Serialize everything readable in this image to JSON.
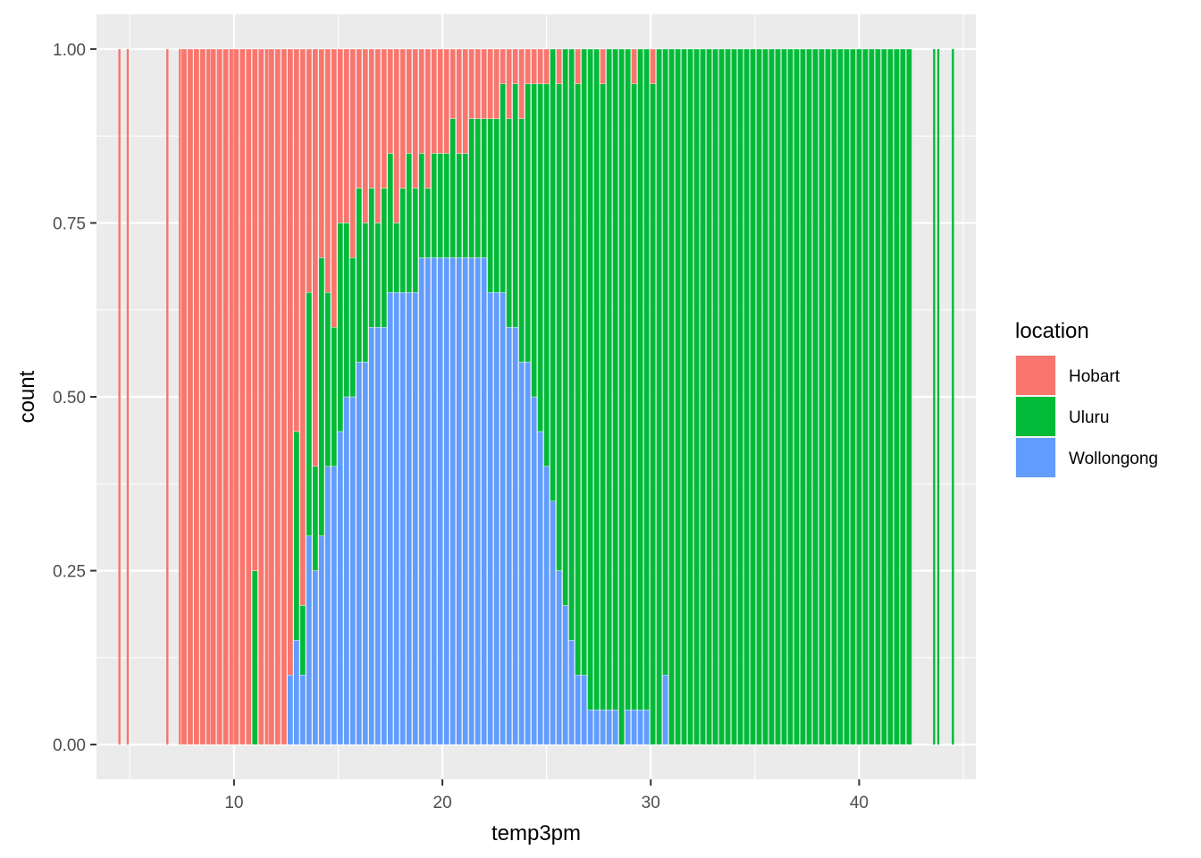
{
  "chart_data": {
    "type": "bar",
    "position": "fill",
    "xlabel": "temp3pm",
    "ylabel": "count",
    "xlim": [
      3.4,
      45.6
    ],
    "ylim": [
      -0.05,
      1.05
    ],
    "x_ticks": [
      10,
      20,
      30,
      40
    ],
    "x_tick_labels": [
      "10",
      "20",
      "30",
      "40"
    ],
    "y_ticks": [
      0,
      0.25,
      0.5,
      0.75,
      1.0
    ],
    "y_tick_labels": [
      "0.00",
      "0.25",
      "0.50",
      "0.75",
      "1.00"
    ],
    "grid": true,
    "legend": {
      "title": "location",
      "placement": "right"
    },
    "series": [
      {
        "name": "Hobart",
        "color": "#F8766D"
      },
      {
        "name": "Uluru",
        "color": "#00BA38"
      },
      {
        "name": "Wollongong",
        "color": "#619CFF"
      }
    ],
    "x": [
      4.5,
      4.9,
      6.8,
      7.4,
      7.6,
      7.9,
      8.2,
      8.5,
      8.8,
      9.0,
      9.3,
      9.6,
      9.9,
      10.1,
      10.4,
      10.7,
      11.0,
      11.3,
      11.6,
      11.8,
      12.1,
      12.4,
      12.7,
      13.0,
      13.3,
      13.6,
      13.9,
      14.2,
      14.5,
      14.8,
      15.1,
      15.4,
      15.7,
      16.0,
      16.3,
      16.6,
      16.9,
      17.2,
      17.5,
      17.8,
      18.1,
      18.4,
      18.7,
      19.0,
      19.3,
      19.6,
      19.9,
      20.2,
      20.5,
      20.8,
      21.1,
      21.4,
      21.7,
      22.0,
      22.3,
      22.6,
      22.9,
      23.2,
      23.5,
      23.8,
      24.1,
      24.4,
      24.7,
      25.0,
      25.3,
      25.6,
      25.9,
      26.2,
      26.5,
      26.8,
      27.1,
      27.4,
      27.7,
      28.0,
      28.3,
      28.6,
      28.9,
      29.2,
      29.5,
      29.8,
      30.1,
      30.4,
      30.7,
      31.0,
      31.3,
      31.6,
      31.9,
      32.2,
      32.5,
      32.8,
      33.1,
      33.4,
      33.7,
      34.0,
      34.3,
      34.6,
      34.9,
      35.2,
      35.5,
      35.8,
      36.1,
      36.4,
      36.7,
      37.0,
      37.3,
      37.6,
      37.9,
      38.2,
      38.5,
      38.8,
      39.1,
      39.4,
      39.7,
      40.0,
      40.3,
      40.6,
      40.9,
      41.2,
      41.5,
      41.8,
      42.1,
      42.4,
      43.6,
      43.8,
      44.5
    ],
    "hobart": [
      1,
      1,
      1,
      1,
      1,
      1,
      1,
      1,
      1,
      1,
      1,
      1,
      1,
      1,
      1,
      1,
      0.75,
      1,
      1,
      1,
      1,
      1,
      0.9,
      0.55,
      0.8,
      0.35,
      0.6,
      0.3,
      0.35,
      0.4,
      0.25,
      0.25,
      0.3,
      0.2,
      0.25,
      0.2,
      0.25,
      0.2,
      0.15,
      0.25,
      0.2,
      0.15,
      0.2,
      0.15,
      0.2,
      0.15,
      0.15,
      0.15,
      0.1,
      0.15,
      0.15,
      0.1,
      0.1,
      0.1,
      0.1,
      0.1,
      0.05,
      0.1,
      0.05,
      0.1,
      0.05,
      0.05,
      0.05,
      0.05,
      0.0,
      0.05,
      0.0,
      0.0,
      0.05,
      0.0,
      0.0,
      0.0,
      0.05,
      0.0,
      0.0,
      0.0,
      0.0,
      0.05,
      0.0,
      0.0,
      0.05,
      0.0,
      0.0,
      0.0,
      0.0,
      0.0,
      0.0,
      0.0,
      0.0,
      0.0,
      0.0,
      0.0,
      0.0,
      0.0,
      0.0,
      0.0,
      0.0,
      0.0,
      0.0,
      0.0,
      0.0,
      0.0,
      0.0,
      0.0,
      0.0,
      0.0,
      0.0,
      0.0,
      0.0,
      0.0,
      0.0,
      0.0,
      0.0,
      0.0,
      0.0,
      0.0,
      0.0,
      0.0,
      0.0,
      0.0,
      0.0,
      0.0,
      0.0,
      0.0,
      0.0
    ],
    "uluru": [
      0,
      0,
      0,
      0,
      0,
      0,
      0,
      0,
      0,
      0,
      0,
      0,
      0,
      0,
      0,
      0,
      0.25,
      0,
      0,
      0,
      0,
      0,
      0.0,
      0.3,
      0.1,
      0.35,
      0.15,
      0.4,
      0.25,
      0.2,
      0.3,
      0.25,
      0.2,
      0.25,
      0.2,
      0.2,
      0.15,
      0.2,
      0.2,
      0.1,
      0.15,
      0.2,
      0.15,
      0.15,
      0.1,
      0.15,
      0.15,
      0.15,
      0.2,
      0.15,
      0.15,
      0.2,
      0.2,
      0.2,
      0.25,
      0.25,
      0.3,
      0.3,
      0.35,
      0.35,
      0.4,
      0.45,
      0.5,
      0.55,
      0.65,
      0.7,
      0.8,
      0.85,
      0.85,
      0.9,
      0.95,
      0.95,
      0.9,
      0.95,
      0.95,
      1.0,
      0.95,
      0.9,
      0.95,
      0.95,
      0.95,
      1.0,
      0.9,
      1.0,
      1.0,
      1.0,
      1.0,
      1.0,
      1.0,
      1.0,
      1.0,
      1.0,
      1.0,
      1.0,
      1.0,
      1.0,
      1.0,
      1.0,
      1.0,
      1.0,
      1.0,
      1.0,
      1.0,
      1.0,
      1.0,
      1.0,
      1.0,
      1.0,
      1.0,
      1.0,
      1.0,
      1.0,
      1.0,
      1.0,
      1.0,
      1.0,
      1.0,
      1.0,
      1.0,
      1.0,
      1.0,
      1.0,
      1.0,
      1.0,
      1.0
    ],
    "wollongong": [
      0,
      0,
      0,
      0,
      0,
      0,
      0,
      0,
      0,
      0,
      0,
      0,
      0,
      0,
      0,
      0,
      0.0,
      0,
      0,
      0,
      0,
      0,
      0.1,
      0.15,
      0.1,
      0.3,
      0.25,
      0.3,
      0.4,
      0.4,
      0.45,
      0.5,
      0.5,
      0.55,
      0.55,
      0.6,
      0.6,
      0.6,
      0.65,
      0.65,
      0.65,
      0.65,
      0.65,
      0.7,
      0.7,
      0.7,
      0.7,
      0.7,
      0.7,
      0.7,
      0.7,
      0.7,
      0.7,
      0.7,
      0.65,
      0.65,
      0.65,
      0.6,
      0.6,
      0.55,
      0.55,
      0.5,
      0.45,
      0.4,
      0.35,
      0.25,
      0.2,
      0.15,
      0.1,
      0.1,
      0.05,
      0.05,
      0.05,
      0.05,
      0.05,
      0.0,
      0.05,
      0.05,
      0.05,
      0.05,
      0.0,
      0.0,
      0.1,
      0.0,
      0.0,
      0.0,
      0.0,
      0.0,
      0.0,
      0.0,
      0.0,
      0.0,
      0.0,
      0.0,
      0.0,
      0.0,
      0.0,
      0.0,
      0.0,
      0.0,
      0.0,
      0.0,
      0.0,
      0.0,
      0.0,
      0.0,
      0.0,
      0.0,
      0.0,
      0.0,
      0.0,
      0.0,
      0.0,
      0.0,
      0.0,
      0.0,
      0.0,
      0.0,
      0.0,
      0.0,
      0.0,
      0.0,
      0.0,
      0.0,
      0.0
    ],
    "thin_bar_x": [
      4.5,
      4.9,
      6.8,
      7.4,
      43.6,
      43.8,
      44.5
    ]
  }
}
